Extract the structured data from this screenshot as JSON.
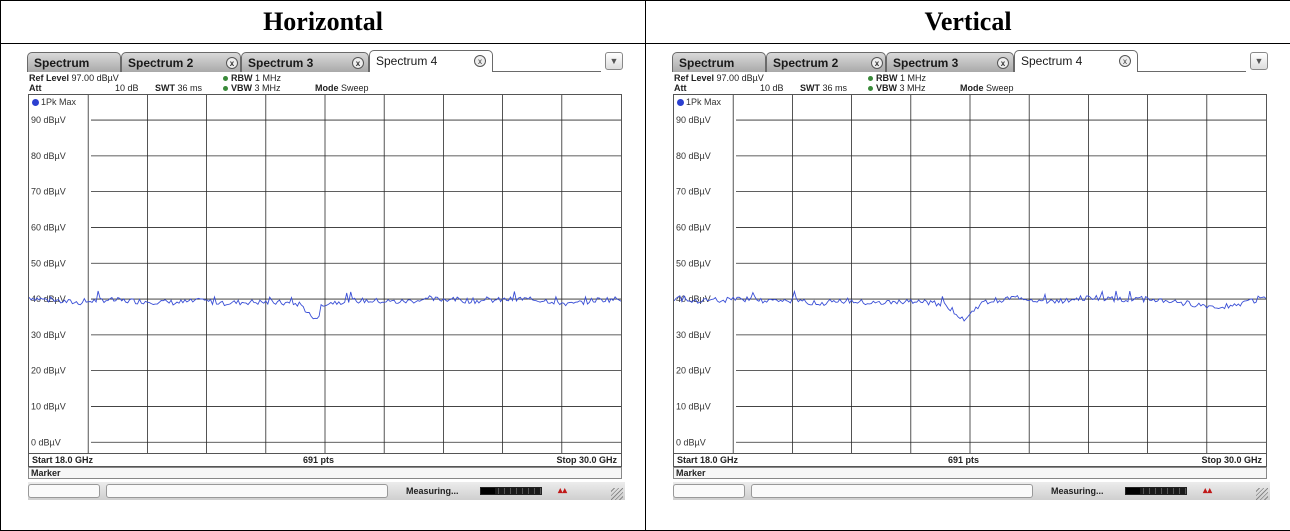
{
  "headers": {
    "left": "Horizontal",
    "right": "Vertical"
  },
  "tabs": [
    {
      "label": "Spectrum",
      "active": false,
      "closable": false
    },
    {
      "label": "Spectrum 2",
      "active": false,
      "closable": true
    },
    {
      "label": "Spectrum 3",
      "active": false,
      "closable": true
    },
    {
      "label": "Spectrum 4",
      "active": true,
      "closable": true
    }
  ],
  "tab_close_glyph": "x",
  "settings": {
    "ref_level_label": "Ref Level",
    "ref_level_value": "97.00 dBµV",
    "att_label": "Att",
    "att_value": "10 dB",
    "swt_label": "SWT",
    "swt_value": "36 ms",
    "rbw_label": "RBW",
    "rbw_value": "1 MHz",
    "vbw_label": "VBW",
    "vbw_value": "3 MHz",
    "mode_label": "Mode",
    "mode_value": "Sweep"
  },
  "trace_label": "1Pk Max",
  "axis": {
    "y_ticks": [
      "90 dBµV",
      "80 dBµV",
      "70 dBµV",
      "60 dBµV",
      "50 dBµV",
      "40 dBµV",
      "30 dBµV",
      "20 dBµV",
      "10 dBµV",
      "0 dBµV"
    ],
    "start": "Start 18.0 GHz",
    "points": "691 pts",
    "stop": "Stop 30.0 GHz"
  },
  "marker_label": "Marker",
  "status_text": "Measuring...",
  "colors": {
    "trace": "#3a4fd6",
    "grid": "#2a2a2a",
    "active_dot": "#2b3fd0"
  },
  "chart_data": [
    {
      "type": "line",
      "title": "",
      "xlabel": "",
      "ylabel": "",
      "xlim_ghz": [
        18.0,
        30.0
      ],
      "ylim": [
        -3,
        97
      ],
      "series": [
        {
          "x": [
            18.0,
            18.5,
            19.0,
            19.5,
            20.0,
            20.5,
            21.0,
            21.5,
            22.0,
            22.5,
            23.0,
            23.5,
            23.8,
            24.0,
            24.5,
            25.0,
            25.5,
            26.0,
            26.5,
            27.0,
            27.5,
            28.0,
            28.5,
            29.0,
            29.5,
            30.0
          ],
          "values": [
            40.5,
            39.5,
            39.0,
            39.8,
            39.5,
            39.3,
            39.0,
            39.5,
            38.9,
            39.2,
            39.0,
            38.6,
            34.0,
            38.8,
            39.6,
            39.5,
            39.2,
            39.8,
            40.0,
            39.5,
            39.7,
            40.0,
            39.6,
            38.5,
            39.8,
            40.0
          ]
        }
      ]
    },
    {
      "type": "line",
      "title": "",
      "xlabel": "",
      "ylabel": "",
      "xlim_ghz": [
        18.0,
        30.0
      ],
      "ylim": [
        -3,
        97
      ],
      "series": [
        {
          "x": [
            18.0,
            18.5,
            19.0,
            19.5,
            20.0,
            20.5,
            21.0,
            21.5,
            22.0,
            22.5,
            23.0,
            23.5,
            23.9,
            24.2,
            24.5,
            25.0,
            25.5,
            26.0,
            26.5,
            27.0,
            27.5,
            28.0,
            28.5,
            29.0,
            29.5,
            30.0
          ],
          "values": [
            40.3,
            39.6,
            39.5,
            40.0,
            39.5,
            39.4,
            39.0,
            39.5,
            38.8,
            39.0,
            39.2,
            38.5,
            34.2,
            38.6,
            39.6,
            40.5,
            39.3,
            39.5,
            40.5,
            39.8,
            40.0,
            39.5,
            38.6,
            37.8,
            38.8,
            40.5
          ]
        }
      ]
    }
  ]
}
